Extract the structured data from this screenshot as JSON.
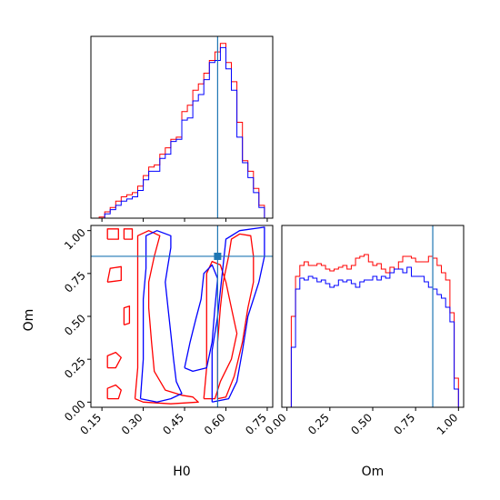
{
  "chart_data": {
    "type": "corner",
    "parameters": [
      "H0",
      "Om"
    ],
    "truth": {
      "H0": 0.57,
      "Om": 0.85
    },
    "colors": {
      "red": "#ff0000",
      "blue": "#0000ff",
      "truth": "#1f77b4"
    },
    "axes": {
      "H0": {
        "label": "H0",
        "range": [
          0.11,
          0.77
        ],
        "ticks": [
          "0.15",
          "0.30",
          "0.45",
          "0.60",
          "0.75"
        ],
        "tick_values": [
          0.15,
          0.3,
          0.45,
          0.6,
          0.75
        ]
      },
      "Om": {
        "label": "Om",
        "range": [
          -0.03,
          1.03
        ],
        "ticks": [
          "0.00",
          "0.25",
          "0.50",
          "0.75",
          "1.00"
        ],
        "tick_values": [
          0.0,
          0.25,
          0.5,
          0.75,
          1.0
        ]
      }
    },
    "hist_H0": {
      "x": [
        0.13,
        0.15,
        0.17,
        0.19,
        0.21,
        0.23,
        0.25,
        0.27,
        0.29,
        0.31,
        0.33,
        0.35,
        0.37,
        0.39,
        0.41,
        0.43,
        0.45,
        0.47,
        0.49,
        0.51,
        0.53,
        0.55,
        0.57,
        0.59,
        0.61,
        0.63,
        0.65,
        0.67,
        0.69,
        0.71,
        0.73,
        0.75
      ],
      "red": [
        0,
        0.5,
        3,
        5,
        8,
        10,
        11,
        12,
        15,
        20,
        24,
        25,
        30,
        33,
        37,
        38,
        50,
        53,
        60,
        63,
        68,
        74,
        78,
        82,
        73,
        64,
        45,
        27,
        22,
        14,
        6,
        0
      ],
      "blue": [
        0,
        0,
        2,
        4,
        6,
        8,
        9,
        10,
        13,
        18,
        22,
        22,
        28,
        30,
        36,
        37,
        46,
        47,
        55,
        58,
        65,
        73,
        74,
        80,
        70,
        60,
        38,
        26,
        19,
        12,
        5,
        0
      ]
    },
    "hist_Om": {
      "x": [
        0.0,
        0.025,
        0.05,
        0.075,
        0.1,
        0.125,
        0.15,
        0.175,
        0.2,
        0.225,
        0.25,
        0.275,
        0.3,
        0.325,
        0.35,
        0.375,
        0.4,
        0.425,
        0.45,
        0.475,
        0.5,
        0.525,
        0.55,
        0.575,
        0.6,
        0.625,
        0.65,
        0.675,
        0.7,
        0.725,
        0.75,
        0.775,
        0.8,
        0.825,
        0.85,
        0.875,
        0.9,
        0.925,
        0.95,
        0.975
      ],
      "red": [
        0,
        0.5,
        0.72,
        0.78,
        0.8,
        0.78,
        0.78,
        0.79,
        0.78,
        0.76,
        0.75,
        0.76,
        0.77,
        0.78,
        0.76,
        0.78,
        0.82,
        0.83,
        0.84,
        0.8,
        0.78,
        0.79,
        0.76,
        0.74,
        0.77,
        0.76,
        0.8,
        0.83,
        0.83,
        0.82,
        0.8,
        0.8,
        0.8,
        0.83,
        0.82,
        0.78,
        0.74,
        0.7,
        0.52,
        0.16
      ],
      "blue": [
        0,
        0.33,
        0.65,
        0.71,
        0.7,
        0.72,
        0.71,
        0.69,
        0.7,
        0.68,
        0.66,
        0.67,
        0.7,
        0.69,
        0.7,
        0.68,
        0.66,
        0.69,
        0.7,
        0.7,
        0.72,
        0.7,
        0.72,
        0.71,
        0.74,
        0.76,
        0.76,
        0.74,
        0.77,
        0.72,
        0.72,
        0.72,
        0.69,
        0.66,
        0.65,
        0.62,
        0.6,
        0.55,
        0.47,
        0.1
      ]
    },
    "contours": {
      "red": [
        [
          [
            0.57,
            0.02
          ],
          [
            0.57,
            0.35
          ],
          [
            0.58,
            0.55
          ],
          [
            0.59,
            0.7
          ],
          [
            0.61,
            0.85
          ],
          [
            0.62,
            0.95
          ],
          [
            0.65,
            0.98
          ],
          [
            0.69,
            0.97
          ],
          [
            0.7,
            0.85
          ],
          [
            0.7,
            0.7
          ],
          [
            0.68,
            0.55
          ],
          [
            0.66,
            0.35
          ],
          [
            0.63,
            0.15
          ],
          [
            0.6,
            0.03
          ],
          [
            0.57,
            0.02
          ]
        ],
        [
          [
            0.52,
            0.02
          ],
          [
            0.53,
            0.2
          ],
          [
            0.53,
            0.4
          ],
          [
            0.53,
            0.6
          ],
          [
            0.53,
            0.75
          ],
          [
            0.55,
            0.82
          ],
          [
            0.58,
            0.8
          ],
          [
            0.6,
            0.7
          ],
          [
            0.62,
            0.55
          ],
          [
            0.64,
            0.4
          ],
          [
            0.62,
            0.25
          ],
          [
            0.58,
            0.12
          ],
          [
            0.56,
            0.02
          ],
          [
            0.52,
            0.02
          ]
        ],
        [
          [
            0.27,
            0.02
          ],
          [
            0.28,
            0.2
          ],
          [
            0.28,
            0.4
          ],
          [
            0.28,
            0.55
          ],
          [
            0.28,
            0.7
          ],
          [
            0.28,
            0.85
          ],
          [
            0.28,
            0.97
          ],
          [
            0.32,
            1.0
          ],
          [
            0.36,
            0.97
          ],
          [
            0.34,
            0.85
          ],
          [
            0.32,
            0.7
          ],
          [
            0.32,
            0.55
          ],
          [
            0.33,
            0.35
          ],
          [
            0.34,
            0.18
          ],
          [
            0.38,
            0.07
          ],
          [
            0.44,
            0.04
          ],
          [
            0.48,
            0.03
          ],
          [
            0.5,
            0.0
          ],
          [
            0.4,
            -0.01
          ],
          [
            0.3,
            0.0
          ],
          [
            0.27,
            0.02
          ]
        ],
        [
          [
            0.17,
            0.02
          ],
          [
            0.17,
            0.08
          ],
          [
            0.2,
            0.1
          ],
          [
            0.22,
            0.07
          ],
          [
            0.21,
            0.02
          ],
          [
            0.17,
            0.02
          ]
        ],
        [
          [
            0.17,
            0.2
          ],
          [
            0.17,
            0.27
          ],
          [
            0.2,
            0.29
          ],
          [
            0.22,
            0.26
          ],
          [
            0.2,
            0.2
          ],
          [
            0.17,
            0.2
          ]
        ],
        [
          [
            0.23,
            0.45
          ],
          [
            0.23,
            0.55
          ],
          [
            0.25,
            0.56
          ],
          [
            0.25,
            0.46
          ],
          [
            0.23,
            0.45
          ]
        ],
        [
          [
            0.17,
            0.7
          ],
          [
            0.18,
            0.78
          ],
          [
            0.22,
            0.79
          ],
          [
            0.22,
            0.71
          ],
          [
            0.17,
            0.7
          ]
        ],
        [
          [
            0.17,
            0.95
          ],
          [
            0.17,
            1.01
          ],
          [
            0.21,
            1.01
          ],
          [
            0.21,
            0.95
          ],
          [
            0.17,
            0.95
          ]
        ],
        [
          [
            0.23,
            0.95
          ],
          [
            0.23,
            1.01
          ],
          [
            0.26,
            1.01
          ],
          [
            0.26,
            0.95
          ],
          [
            0.23,
            0.95
          ]
        ]
      ],
      "blue": [
        [
          [
            0.55,
            0.0
          ],
          [
            0.55,
            0.3
          ],
          [
            0.57,
            0.5
          ],
          [
            0.58,
            0.65
          ],
          [
            0.59,
            0.8
          ],
          [
            0.6,
            0.95
          ],
          [
            0.65,
            1.0
          ],
          [
            0.74,
            1.02
          ],
          [
            0.74,
            0.85
          ],
          [
            0.72,
            0.7
          ],
          [
            0.68,
            0.5
          ],
          [
            0.66,
            0.3
          ],
          [
            0.64,
            0.12
          ],
          [
            0.61,
            0.02
          ],
          [
            0.55,
            0.0
          ]
        ],
        [
          [
            0.45,
            0.2
          ],
          [
            0.47,
            0.35
          ],
          [
            0.49,
            0.48
          ],
          [
            0.51,
            0.6
          ],
          [
            0.52,
            0.75
          ],
          [
            0.55,
            0.8
          ],
          [
            0.57,
            0.72
          ],
          [
            0.56,
            0.55
          ],
          [
            0.55,
            0.35
          ],
          [
            0.53,
            0.2
          ],
          [
            0.48,
            0.18
          ],
          [
            0.45,
            0.2
          ]
        ],
        [
          [
            0.29,
            0.02
          ],
          [
            0.3,
            0.25
          ],
          [
            0.3,
            0.45
          ],
          [
            0.3,
            0.6
          ],
          [
            0.31,
            0.78
          ],
          [
            0.31,
            0.97
          ],
          [
            0.35,
            1.0
          ],
          [
            0.4,
            0.97
          ],
          [
            0.4,
            0.9
          ],
          [
            0.39,
            0.8
          ],
          [
            0.38,
            0.7
          ],
          [
            0.39,
            0.55
          ],
          [
            0.4,
            0.4
          ],
          [
            0.41,
            0.25
          ],
          [
            0.42,
            0.12
          ],
          [
            0.44,
            0.05
          ],
          [
            0.4,
            0.02
          ],
          [
            0.35,
            0.0
          ],
          [
            0.29,
            0.02
          ]
        ]
      ]
    }
  }
}
